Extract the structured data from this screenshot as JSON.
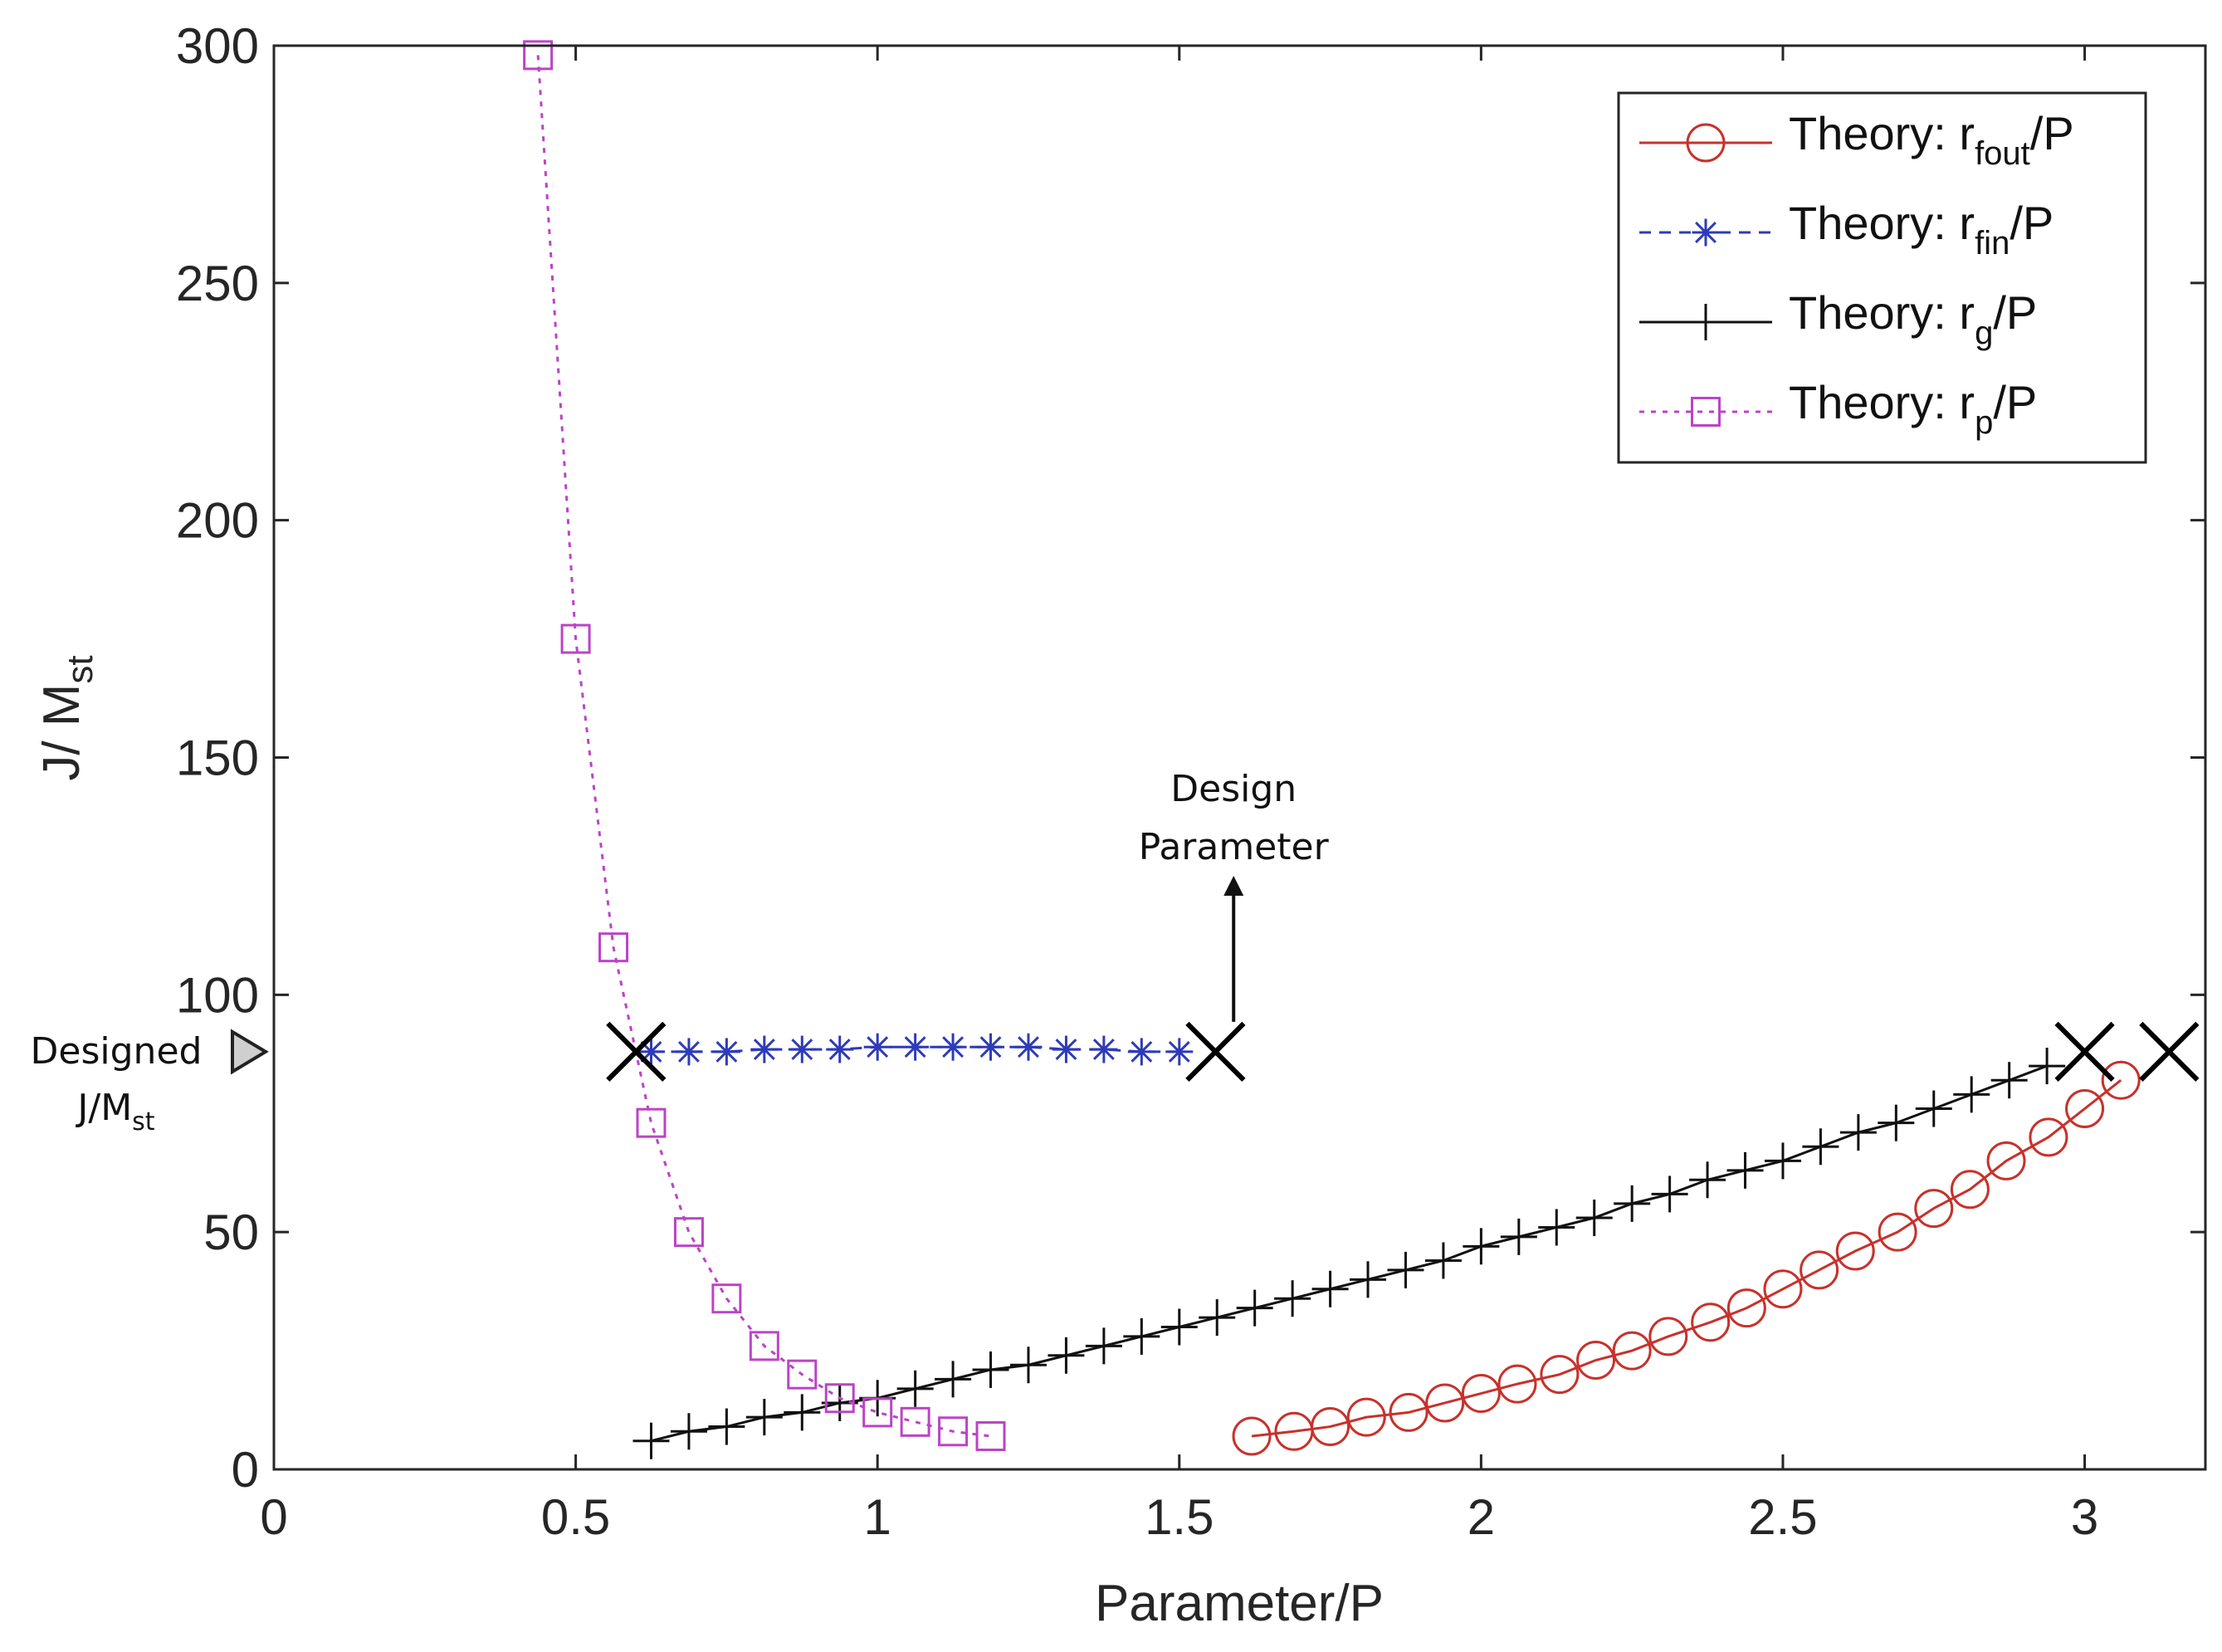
{
  "chart_data": {
    "type": "line",
    "title": "",
    "xlabel": "Parameter/P",
    "ylabel": {
      "main": "J/ M",
      "sub": "st"
    },
    "xlim": [
      0,
      3.2
    ],
    "ylim": [
      0,
      300
    ],
    "xticks": [
      0,
      0.5,
      1,
      1.5,
      2,
      2.5,
      3
    ],
    "xtick_labels": [
      "0",
      "0.5",
      "1",
      "1.5",
      "2",
      "2.5",
      "3"
    ],
    "yticks": [
      0,
      50,
      100,
      150,
      200,
      250,
      300
    ],
    "ytick_labels": [
      "0",
      "50",
      "100",
      "150",
      "200",
      "250",
      "300"
    ],
    "grid": false,
    "legend_position": "top-right",
    "series": [
      {
        "name": "Theory: r_fout/P",
        "legend_main": "Theory: r",
        "legend_sub": "fout",
        "legend_tail": "/P",
        "color": "#c8312b",
        "line": "solid",
        "marker": "circle",
        "x": [
          1.62,
          1.69,
          1.75,
          1.81,
          1.88,
          1.94,
          2.0,
          2.06,
          2.13,
          2.19,
          2.25,
          2.31,
          2.38,
          2.44,
          2.5,
          2.56,
          2.62,
          2.69,
          2.75,
          2.81,
          2.87,
          2.94,
          3.0,
          3.06
        ],
        "y": [
          7,
          8,
          9,
          11,
          12,
          14,
          16,
          18,
          20,
          23,
          25,
          28,
          31,
          34,
          38,
          42,
          46,
          50,
          55,
          59,
          65,
          70,
          76,
          82
        ]
      },
      {
        "name": "Theory: r_fin/P",
        "legend_main": "Theory: r",
        "legend_sub": "fin",
        "legend_tail": "/P",
        "color": "#2e3bb8",
        "line": "dashed",
        "marker": "asterisk",
        "x": [
          0.625,
          0.6875,
          0.75,
          0.8125,
          0.875,
          0.9375,
          1.0,
          1.0625,
          1.125,
          1.1875,
          1.25,
          1.3125,
          1.375,
          1.4375,
          1.5
        ],
        "y": [
          88,
          88,
          88,
          88.5,
          88.5,
          88.5,
          89,
          89,
          89,
          89,
          89,
          88.5,
          88.5,
          88,
          88
        ]
      },
      {
        "name": "Theory: r_g/P",
        "legend_main": "Theory: r",
        "legend_sub": "g",
        "legend_tail": "/P",
        "color": "#111111",
        "line": "solid",
        "marker": "plus",
        "x": [
          0.625,
          0.6875,
          0.75,
          0.8125,
          0.875,
          0.9375,
          1.0,
          1.0625,
          1.125,
          1.1875,
          1.25,
          1.3125,
          1.375,
          1.4375,
          1.5,
          1.5625,
          1.625,
          1.6875,
          1.75,
          1.8125,
          1.875,
          1.9375,
          2.0,
          2.0625,
          2.125,
          2.1875,
          2.25,
          2.3125,
          2.375,
          2.4375,
          2.5,
          2.5625,
          2.625,
          2.6875,
          2.75,
          2.8125,
          2.875,
          2.9375
        ],
        "y": [
          6,
          8,
          9,
          11,
          12,
          14,
          15,
          17,
          19,
          21,
          22,
          24,
          26,
          28,
          30,
          32,
          34,
          36,
          38,
          40,
          42,
          44,
          47,
          49,
          51,
          53,
          56,
          58,
          61,
          63,
          65,
          68,
          71,
          73,
          76,
          79,
          82,
          85
        ]
      },
      {
        "name": "Theory: r_p/P",
        "legend_main": "Theory: r",
        "legend_sub": "p",
        "legend_tail": "/P",
        "color": "#bb44c6",
        "line": "dotted",
        "marker": "square",
        "x": [
          0.4375,
          0.5,
          0.5625,
          0.625,
          0.6875,
          0.75,
          0.8125,
          0.875,
          0.9375,
          1.0,
          1.0625,
          1.125,
          1.1875
        ],
        "y": [
          298,
          175,
          110,
          73,
          50,
          36,
          26,
          20,
          15,
          12,
          10,
          8,
          7
        ]
      }
    ],
    "intersection_markers": [
      {
        "x": 0.6,
        "y": 88
      },
      {
        "x": 1.56,
        "y": 88
      },
      {
        "x": 3.0,
        "y": 88
      },
      {
        "x": 3.14,
        "y": 88
      }
    ],
    "annotations": {
      "design_parameter": {
        "line1": "Design",
        "line2": "Parameter",
        "x": 1.59
      },
      "designed_level": {
        "line1": "Designed",
        "line2_main": "J/M",
        "line2_sub": "st",
        "y": 88
      }
    }
  }
}
